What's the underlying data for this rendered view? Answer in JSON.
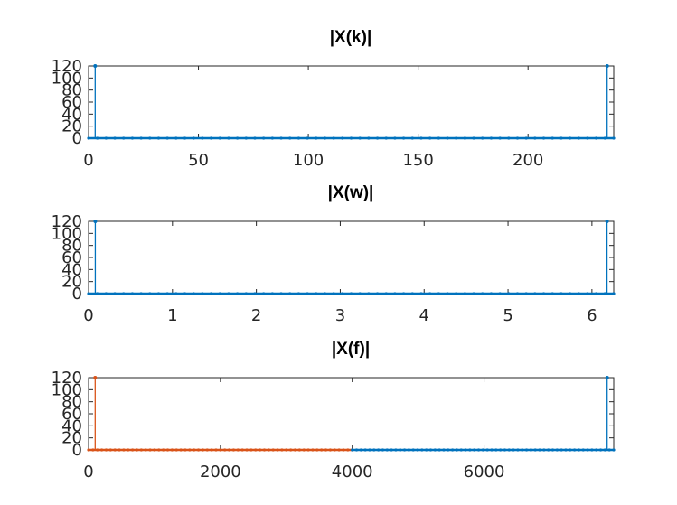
{
  "chart_data": [
    {
      "type": "line",
      "title": "|X(k)|",
      "xlim": [
        0,
        239
      ],
      "ylim": [
        0,
        120
      ],
      "xticks": [
        0,
        50,
        100,
        150,
        200
      ],
      "yticks": [
        0,
        20,
        40,
        60,
        80,
        100,
        120
      ],
      "grid": false,
      "series": [
        {
          "color": "#0072bd",
          "style": "stem",
          "baseline": 0,
          "points": [
            [
              0,
              0
            ],
            [
              3,
              120
            ],
            [
              236,
              120
            ],
            [
              239,
              0
            ]
          ]
        }
      ]
    },
    {
      "type": "line",
      "title": "|X(w)|",
      "xlim": [
        0,
        6.26
      ],
      "ylim": [
        0,
        120
      ],
      "xticks": [
        0,
        1,
        2,
        3,
        4,
        5,
        6
      ],
      "yticks": [
        0,
        20,
        40,
        60,
        80,
        100,
        120
      ],
      "grid": false,
      "series": [
        {
          "color": "#0072bd",
          "style": "stem",
          "baseline": 0,
          "points": [
            [
              0,
              0
            ],
            [
              0.08,
              120
            ],
            [
              6.18,
              120
            ],
            [
              6.26,
              0
            ]
          ]
        }
      ]
    },
    {
      "type": "line",
      "title": "|X(f)|",
      "xlim": [
        0,
        7967
      ],
      "ylim": [
        0,
        120
      ],
      "xticks": [
        0,
        2000,
        4000,
        6000
      ],
      "yticks": [
        0,
        20,
        40,
        60,
        80,
        100,
        120
      ],
      "grid": false,
      "series": [
        {
          "color": "#d95319",
          "style": "stem",
          "baseline": 0,
          "points": [
            [
              0,
              0
            ],
            [
              100,
              120
            ],
            [
              4000,
              0
            ]
          ]
        },
        {
          "color": "#0072bd",
          "style": "stem",
          "baseline": 0,
          "points": [
            [
              4000,
              0
            ],
            [
              7867,
              120
            ],
            [
              7967,
              0
            ]
          ]
        }
      ]
    }
  ],
  "colors": {
    "axis": "#262626",
    "box": "#262626"
  }
}
